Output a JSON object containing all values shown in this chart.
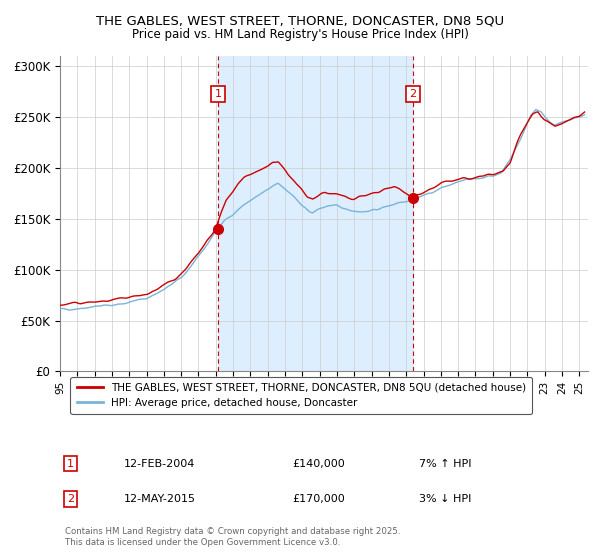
{
  "title_line1": "THE GABLES, WEST STREET, THORNE, DONCASTER, DN8 5QU",
  "title_line2": "Price paid vs. HM Land Registry's House Price Index (HPI)",
  "ylim": [
    0,
    310000
  ],
  "xlim_start": 1995.0,
  "xlim_end": 2025.5,
  "yticks": [
    0,
    50000,
    100000,
    150000,
    200000,
    250000,
    300000
  ],
  "ytick_labels": [
    "£0",
    "£50K",
    "£100K",
    "£150K",
    "£200K",
    "£250K",
    "£300K"
  ],
  "xtick_years": [
    1995,
    1996,
    1997,
    1998,
    1999,
    2000,
    2001,
    2002,
    2003,
    2004,
    2005,
    2006,
    2007,
    2008,
    2009,
    2010,
    2011,
    2012,
    2013,
    2014,
    2015,
    2016,
    2017,
    2018,
    2019,
    2020,
    2021,
    2022,
    2023,
    2024,
    2025
  ],
  "sale1_date": 2004.12,
  "sale1_price": 140000,
  "sale1_label": "1",
  "sale1_hpi_pct": "7% ↑ HPI",
  "sale1_date_str": "12-FEB-2004",
  "sale2_date": 2015.37,
  "sale2_price": 170000,
  "sale2_label": "2",
  "sale2_hpi_pct": "3% ↓ HPI",
  "sale2_date_str": "12-MAY-2015",
  "hpi_color": "#7ab4d8",
  "price_color": "#cc0000",
  "bg_shade_color": "#ddeeff",
  "grid_color": "#cccccc",
  "legend_label_price": "THE GABLES, WEST STREET, THORNE, DONCASTER, DN8 5QU (detached house)",
  "legend_label_hpi": "HPI: Average price, detached house, Doncaster",
  "footer_text": "Contains HM Land Registry data © Crown copyright and database right 2025.\nThis data is licensed under the Open Government Licence v3.0.",
  "sale_marker_size": 7,
  "background_color": "#ffffff",
  "hpi_anchors_x": [
    1995.0,
    1996.0,
    1997.0,
    1998.0,
    1999.0,
    2000.0,
    2001.0,
    2002.0,
    2003.0,
    2003.5,
    2004.0,
    2004.5,
    2005.0,
    2005.5,
    2006.0,
    2006.5,
    2007.0,
    2007.3,
    2007.6,
    2008.0,
    2008.5,
    2009.0,
    2009.3,
    2009.6,
    2010.0,
    2010.5,
    2011.0,
    2011.5,
    2012.0,
    2012.5,
    2013.0,
    2013.5,
    2014.0,
    2014.5,
    2015.0,
    2015.3,
    2015.5,
    2016.0,
    2016.5,
    2017.0,
    2017.5,
    2018.0,
    2018.5,
    2019.0,
    2019.5,
    2020.0,
    2020.5,
    2021.0,
    2021.5,
    2022.0,
    2022.2,
    2022.5,
    2022.8,
    2023.0,
    2023.3,
    2023.6,
    2024.0,
    2024.3,
    2024.6,
    2025.0,
    2025.3
  ],
  "hpi_anchors_y": [
    61000,
    62000,
    64000,
    65000,
    68000,
    72000,
    80000,
    92000,
    112000,
    125000,
    138000,
    148000,
    155000,
    162000,
    168000,
    173000,
    178000,
    182000,
    185000,
    180000,
    172000,
    162000,
    158000,
    156000,
    160000,
    163000,
    162000,
    160000,
    158000,
    157000,
    158000,
    160000,
    163000,
    166000,
    168000,
    169000,
    170000,
    173000,
    176000,
    180000,
    183000,
    186000,
    188000,
    190000,
    191000,
    192000,
    196000,
    208000,
    225000,
    244000,
    252000,
    258000,
    255000,
    250000,
    246000,
    242000,
    244000,
    246000,
    248000,
    250000,
    252000
  ],
  "price_anchors_x": [
    1995.0,
    1996.0,
    1997.0,
    1998.0,
    1999.0,
    2000.0,
    2001.0,
    2002.0,
    2003.0,
    2003.5,
    2004.0,
    2004.3,
    2004.6,
    2005.0,
    2005.3,
    2005.6,
    2006.0,
    2006.3,
    2006.6,
    2007.0,
    2007.3,
    2007.6,
    2008.0,
    2008.3,
    2008.6,
    2009.0,
    2009.3,
    2009.6,
    2010.0,
    2010.3,
    2010.6,
    2011.0,
    2011.3,
    2011.6,
    2012.0,
    2012.3,
    2012.6,
    2013.0,
    2013.3,
    2013.6,
    2014.0,
    2014.3,
    2014.6,
    2015.0,
    2015.3,
    2015.6,
    2016.0,
    2016.3,
    2016.6,
    2017.0,
    2017.3,
    2017.6,
    2018.0,
    2018.3,
    2018.6,
    2019.0,
    2019.3,
    2019.6,
    2020.0,
    2020.3,
    2020.6,
    2021.0,
    2021.3,
    2021.6,
    2022.0,
    2022.3,
    2022.6,
    2023.0,
    2023.3,
    2023.6,
    2024.0,
    2024.3,
    2024.6,
    2025.0,
    2025.3
  ],
  "price_anchors_y": [
    65000,
    67000,
    68000,
    69000,
    72000,
    76000,
    84000,
    96000,
    115000,
    128000,
    140000,
    155000,
    168000,
    178000,
    185000,
    190000,
    193000,
    196000,
    198000,
    200000,
    205000,
    205000,
    198000,
    192000,
    185000,
    177000,
    172000,
    170000,
    174000,
    176000,
    175000,
    174000,
    172000,
    170000,
    170000,
    172000,
    173000,
    174000,
    176000,
    178000,
    180000,
    181000,
    180000,
    175000,
    170000,
    174000,
    177000,
    179000,
    181000,
    184000,
    186000,
    187000,
    188000,
    189000,
    189000,
    190000,
    191000,
    192000,
    193000,
    195000,
    197000,
    205000,
    218000,
    232000,
    245000,
    252000,
    255000,
    248000,
    244000,
    241000,
    244000,
    247000,
    249000,
    252000,
    255000
  ]
}
